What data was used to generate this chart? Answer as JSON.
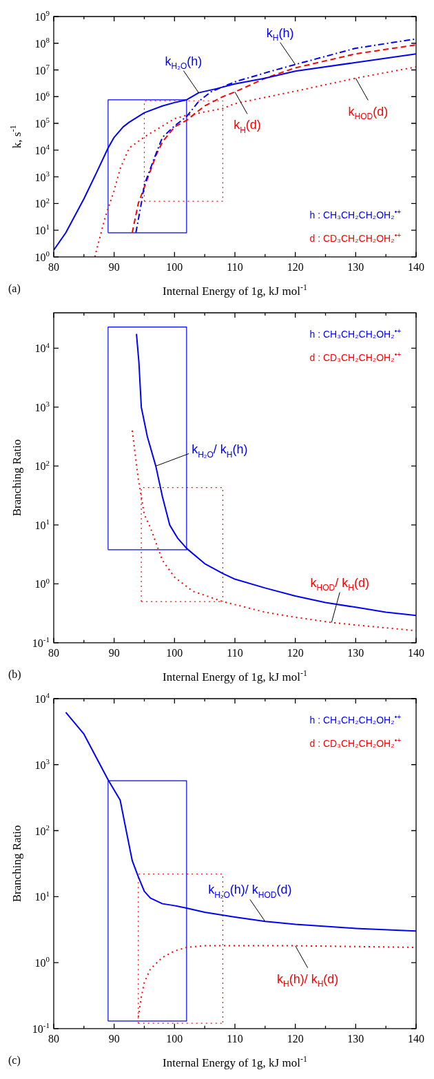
{
  "chart_data": [
    {
      "type": "line",
      "title": "(a)",
      "xlabel": "Internal Energy of 1g, kJ mol$^{-1}$",
      "ylabel": "k, s$^{-1}$",
      "log": true,
      "grid": false,
      "legend": false,
      "marker": "none",
      "xlim": [
        80,
        140
      ],
      "ylim": [
        1,
        1000000000
      ],
      "xticks": [
        80,
        {
          "value": 85,
          "label": null
        },
        90,
        {
          "value": 95,
          "label": null
        },
        100,
        {
          "value": 105,
          "label": null
        },
        110,
        {
          "value": 115,
          "label": null
        },
        120,
        {
          "value": 125,
          "label": null
        },
        130,
        {
          "value": 135,
          "label": null
        },
        140
      ],
      "yticks": [
        {
          "value": 1,
          "label": "10$^{0}$"
        },
        {
          "value": 10,
          "label": "10$^{1}$"
        },
        {
          "value": 100,
          "label": "10$^{2}$"
        },
        {
          "value": 1000,
          "label": "10$^{3}$"
        },
        {
          "value": 10000,
          "label": "10$^{4}$"
        },
        {
          "value": 100000,
          "label": "10$^{5}$"
        },
        {
          "value": 1000000,
          "label": "10$^{6}$"
        },
        {
          "value": 10000000,
          "label": "10$^{7}$"
        },
        {
          "value": 100000000,
          "label": "10$^{8}$"
        },
        {
          "value": 1000000000,
          "label": "10$^{9}$"
        }
      ],
      "series": [
        {
          "color": "#0000ff",
          "line_style": "solid",
          "x": [
            80,
            82,
            85,
            87,
            89,
            90,
            91.5,
            92.5,
            95,
            98,
            100,
            102,
            104,
            107,
            110,
            115,
            120,
            130,
            140
          ],
          "values": [
            1.8,
            8,
            150,
            1300,
            12000,
            30000,
            74000,
            110000,
            250000,
            450000,
            600000,
            760000,
            1400000,
            2000000,
            3000000,
            4900000,
            9000000,
            19000000,
            40000000
          ]
        },
        {
          "color": "#0000ff",
          "line_style": "dashdot",
          "x": [
            93.6,
            94.5,
            95,
            96,
            97,
            98,
            100,
            102,
            104,
            106,
            110,
            116,
            120,
            130,
            140
          ],
          "values": [
            8,
            100,
            500,
            2000,
            8000,
            30000,
            80000,
            180000,
            660000,
            1500000,
            3600000,
            9000000,
            16000000,
            65000000,
            145000000
          ]
        },
        {
          "color": "#ff0000",
          "line_style": "dashed",
          "x": [
            93,
            94,
            97,
            98,
            100,
            102,
            105,
            108,
            110,
            115,
            120,
            130,
            140
          ],
          "values": [
            8,
            100,
            6800,
            20000,
            74000,
            130000,
            450000,
            1000000,
            1500000,
            4900000,
            12000000,
            40000000,
            87000000
          ]
        },
        {
          "color": "#ff0000",
          "line_style": "dotted",
          "x": [
            86.8,
            88.5,
            90,
            91,
            92.5,
            95.2,
            100,
            102,
            108,
            110,
            120,
            130,
            140
          ],
          "values": [
            1,
            30,
            300,
            2000,
            12000,
            33000,
            150000,
            200000,
            360000,
            550000,
            1600000,
            4900000,
            13000000
          ]
        },
        {
          "color": "#0000ff",
          "line_style": "solid",
          "x": [
            89,
            89,
            102,
            102
          ],
          "values": [
            8,
            760000,
            760000,
            8
          ]
        },
        {
          "color": "#0000ff",
          "line_style": "solid",
          "x": [
            89,
            102
          ],
          "values": [
            8,
            8
          ]
        },
        {
          "color": "#ff0000",
          "line_style": "dotted",
          "x": [
            95,
            95,
            108,
            108
          ],
          "values": [
            120,
            700000,
            700000,
            120
          ]
        },
        {
          "color": "#ff0000",
          "line_style": "dotted",
          "x": [
            95,
            108
          ],
          "values": [
            120,
            120
          ]
        }
      ],
      "annotations": [
        {
          "text": "k$_{H₂O}$(h)",
          "x": 104,
          "y": 1400000
        },
        {
          "text": "k$_{H}$(h)",
          "x": 120,
          "y": 16000000
        },
        {
          "text": "k$_{H}$(d)",
          "x": 110,
          "y": 1500000
        },
        {
          "text": "k$_{HOD}$(d)",
          "x": 130,
          "y": 4900000
        },
        "h : CH₃CH₂CH₂OH₂$^{•+}$",
        "d : CD₃CH₂CH₂OH₂$^{•+}$"
      ]
    },
    {
      "type": "line",
      "title": "(b)",
      "xlabel": "Internal Energy of 1g, kJ mol$^{-1}$",
      "ylabel": "Branching Ratio",
      "log": true,
      "grid": false,
      "legend": false,
      "marker": "none",
      "xlim": [
        80,
        140
      ],
      "ylim": [
        0.1,
        40000
      ],
      "xticks": [
        80,
        {
          "value": 85,
          "label": null
        },
        90,
        {
          "value": 95,
          "label": null
        },
        100,
        {
          "value": 105,
          "label": null
        },
        110,
        {
          "value": 115,
          "label": null
        },
        120,
        {
          "value": 125,
          "label": null
        },
        130,
        {
          "value": 135,
          "label": null
        },
        140
      ],
      "yticks": [
        {
          "value": 0.1,
          "label": "10$^{-1}$"
        },
        {
          "value": 1,
          "label": "10$^{0}$"
        },
        {
          "value": 10,
          "label": "10$^{1}$"
        },
        {
          "value": 100,
          "label": "10$^{2}$"
        },
        {
          "value": 1000,
          "label": "10$^{3}$"
        },
        {
          "value": 10000,
          "label": "10$^{4}$"
        }
      ],
      "series": [
        {
          "color": "#0000ff",
          "line_style": "solid",
          "x": [
            93.7,
            94.1,
            94.5,
            95.5,
            96.9,
            98,
            99.2,
            100.5,
            102,
            105,
            108,
            110,
            115,
            120,
            125,
            130,
            135,
            140
          ],
          "values": [
            17500,
            5800,
            1000,
            316,
            100,
            30,
            10,
            6,
            4,
            2.2,
            1.5,
            1.2,
            0.85,
            0.62,
            0.48,
            0.4,
            0.33,
            0.29
          ]
        },
        {
          "color": "#ff0000",
          "line_style": "dotted",
          "x": [
            93,
            94,
            95,
            96,
            98,
            100,
            103,
            108,
            115,
            120,
            126,
            130,
            140
          ],
          "values": [
            400,
            60,
            15,
            9,
            2.5,
            1.3,
            0.75,
            0.5,
            0.33,
            0.27,
            0.22,
            0.2,
            0.16
          ]
        },
        {
          "color": "#0000ff",
          "line_style": "solid",
          "x": [
            89,
            89,
            102,
            102
          ],
          "values": [
            3.8,
            23000,
            23000,
            3.8
          ]
        },
        {
          "color": "#0000ff",
          "line_style": "solid",
          "x": [
            89,
            102
          ],
          "values": [
            3.8,
            3.8
          ]
        },
        {
          "color": "#ff0000",
          "line_style": "dotted",
          "x": [
            94.5,
            94.5,
            108,
            108
          ],
          "values": [
            0.5,
            43,
            43,
            0.5
          ]
        },
        {
          "color": "#ff0000",
          "line_style": "dotted",
          "x": [
            94.5,
            108
          ],
          "values": [
            0.5,
            0.5
          ]
        }
      ],
      "annotations": [
        {
          "text": "k$_{H₂O}$/ k$_{H}$(h)",
          "x": 96.9,
          "y": 100
        },
        {
          "text": "k$_{HOD}$/ k$_{H}$(d)",
          "x": 126,
          "y": 0.22
        },
        "h : CH₃CH₂CH₂OH₂$^{•+}$",
        "d : CD₃CH₂CH₂OH₂$^{•+}$"
      ]
    },
    {
      "type": "line",
      "title": "(c)",
      "xlabel": "Internal Energy of 1g, kJ mol$^{-1}$",
      "ylabel": "Branching Ratio",
      "log": true,
      "grid": false,
      "legend": false,
      "marker": "none",
      "xlim": [
        80,
        140
      ],
      "ylim": [
        0.1,
        10000
      ],
      "xticks": [
        80,
        {
          "value": 85,
          "label": null
        },
        90,
        {
          "value": 95,
          "label": null
        },
        100,
        {
          "value": 105,
          "label": null
        },
        110,
        {
          "value": 115,
          "label": null
        },
        120,
        {
          "value": 125,
          "label": null
        },
        130,
        {
          "value": 135,
          "label": null
        },
        140
      ],
      "yticks": [
        {
          "value": 0.1,
          "label": "10$^{-1}$"
        },
        {
          "value": 1,
          "label": "10$^{0}$"
        },
        {
          "value": 10,
          "label": "10$^{1}$"
        },
        {
          "value": 100,
          "label": "10$^{2}$"
        },
        {
          "value": 1000,
          "label": "10$^{3}$"
        },
        {
          "value": 10000,
          "label": "10$^{4}$"
        }
      ],
      "series": [
        {
          "color": "#0000ff",
          "line_style": "solid",
          "x": [
            82,
            85,
            89,
            91,
            92,
            93,
            94,
            95,
            96,
            98,
            100,
            102,
            105,
            110,
            115,
            120,
            130,
            140
          ],
          "values": [
            6200,
            2900,
            590,
            290,
            100,
            35,
            20,
            12,
            9.5,
            7.8,
            7.3,
            6.7,
            5.8,
            4.9,
            4.2,
            3.8,
            3.3,
            3.0
          ]
        },
        {
          "color": "#ff0000",
          "line_style": "dotted",
          "x": [
            94,
            94.5,
            95,
            96,
            98,
            100,
            102,
            105,
            110,
            120,
            130,
            140
          ],
          "values": [
            0.15,
            0.3,
            0.5,
            0.8,
            1.2,
            1.5,
            1.7,
            1.8,
            1.8,
            1.8,
            1.75,
            1.7
          ]
        },
        {
          "color": "#0000ff",
          "line_style": "solid",
          "x": [
            89,
            89,
            102,
            102
          ],
          "values": [
            0.13,
            570,
            570,
            0.13
          ]
        },
        {
          "color": "#0000ff",
          "line_style": "solid",
          "x": [
            89,
            102
          ],
          "values": [
            0.13,
            0.13
          ]
        },
        {
          "color": "#ff0000",
          "line_style": "dotted",
          "x": [
            94,
            94,
            108,
            108
          ],
          "values": [
            0.12,
            22,
            22,
            0.12
          ]
        },
        {
          "color": "#ff0000",
          "line_style": "dotted",
          "x": [
            94,
            108
          ],
          "values": [
            0.12,
            0.12
          ]
        }
      ],
      "annotations": [
        {
          "text": "k$_{H₂O}$(h)/ k$_{HOD}$(d)",
          "x": 115,
          "y": 4.2
        },
        {
          "text": "k$_{H}$(h)/ k$_{H}$(d)",
          "x": 120,
          "y": 1.8
        },
        "h : CH₃CH₂CH₂OH₂$^{•+}$",
        "d : CD₃CH₂CH₂OH₂$^{•+}$"
      ]
    }
  ]
}
